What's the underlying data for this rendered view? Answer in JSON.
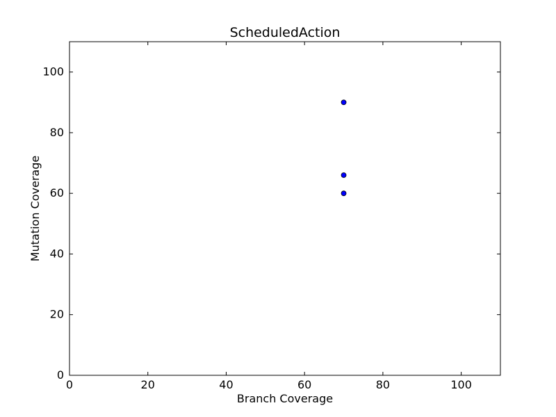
{
  "chart_data": {
    "type": "scatter",
    "title": "ScheduledAction",
    "xlabel": "Branch Coverage",
    "ylabel": "Mutation Coverage",
    "xlim": [
      0,
      110
    ],
    "ylim": [
      0,
      110
    ],
    "xticks": [
      0,
      20,
      40,
      60,
      80,
      100
    ],
    "yticks": [
      0,
      20,
      40,
      60,
      80,
      100
    ],
    "grid": false,
    "marker_color": "#0000ff",
    "series": [
      {
        "points": [
          {
            "x": 70,
            "y": 90
          },
          {
            "x": 70,
            "y": 66
          },
          {
            "x": 70,
            "y": 60
          }
        ]
      }
    ]
  }
}
